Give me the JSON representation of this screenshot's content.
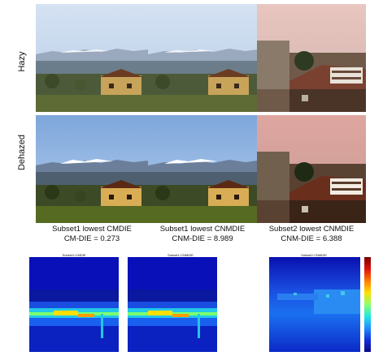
{
  "rows": [
    {
      "label": "Hazy"
    },
    {
      "label": "Dehazed"
    }
  ],
  "columns": [
    {
      "caption_line1": "Subset1 lowest CMDIE",
      "caption_line2": "CM-DIE = 0.273"
    },
    {
      "caption_line1": "Subset1 lowest CNMDIE",
      "caption_line2": "CNM-DIE = 8.989"
    },
    {
      "caption_line1": "Subset2 lowest CNMDIE",
      "caption_line2": "CNM-DIE = 6.388"
    }
  ],
  "maps": [
    {
      "title": "Subset1-CMDIE"
    },
    {
      "title": "Subset1-CNMDIE"
    },
    {
      "title": "Subset2-CNMDIE"
    }
  ],
  "colorbar": {
    "colors_top_to_bottom": [
      "#7a0000",
      "#e01010",
      "#ff7a00",
      "#ffe000",
      "#8cff6a",
      "#20e8e0",
      "#1f8cff",
      "#1030d8",
      "#0a0a8a"
    ]
  },
  "palette": {
    "sky_hazy": "#c9d9ee",
    "sky_dehazed": "#9fbfe6",
    "map_background": "#0b1aa8"
  }
}
